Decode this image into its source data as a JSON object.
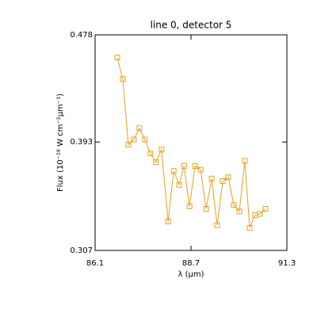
{
  "chart_data": {
    "type": "line",
    "title": "line 0, detector 5",
    "x_label": "λ (μm)",
    "y_label": "Flux (10⁻¹⁸ W cm⁻²μm⁻¹)",
    "xlim": [
      86.1,
      91.3
    ],
    "xticks": [
      86.1,
      88.7,
      91.3
    ],
    "ylim": [
      0.307,
      0.478
    ],
    "yticks": [
      0.307,
      0.393,
      0.478
    ],
    "marker": "square",
    "series": [
      {
        "color": "#e8a020",
        "x": [
          86.7,
          86.85,
          87.0,
          87.15,
          87.3,
          87.45,
          87.6,
          87.75,
          87.9,
          88.08,
          88.23,
          88.38,
          88.51,
          88.66,
          88.81,
          88.96,
          89.11,
          89.26,
          89.41,
          89.56,
          89.71,
          89.86,
          90.01,
          90.16,
          90.29,
          90.44,
          90.57,
          90.72
        ],
        "values": [
          0.46,
          0.443,
          0.391,
          0.395,
          0.404,
          0.395,
          0.384,
          0.377,
          0.387,
          0.33,
          0.37,
          0.359,
          0.374,
          0.342,
          0.374,
          0.371,
          0.34,
          0.364,
          0.327,
          0.362,
          0.365,
          0.343,
          0.338,
          0.378,
          0.325,
          0.335,
          0.336,
          0.34
        ]
      }
    ]
  }
}
